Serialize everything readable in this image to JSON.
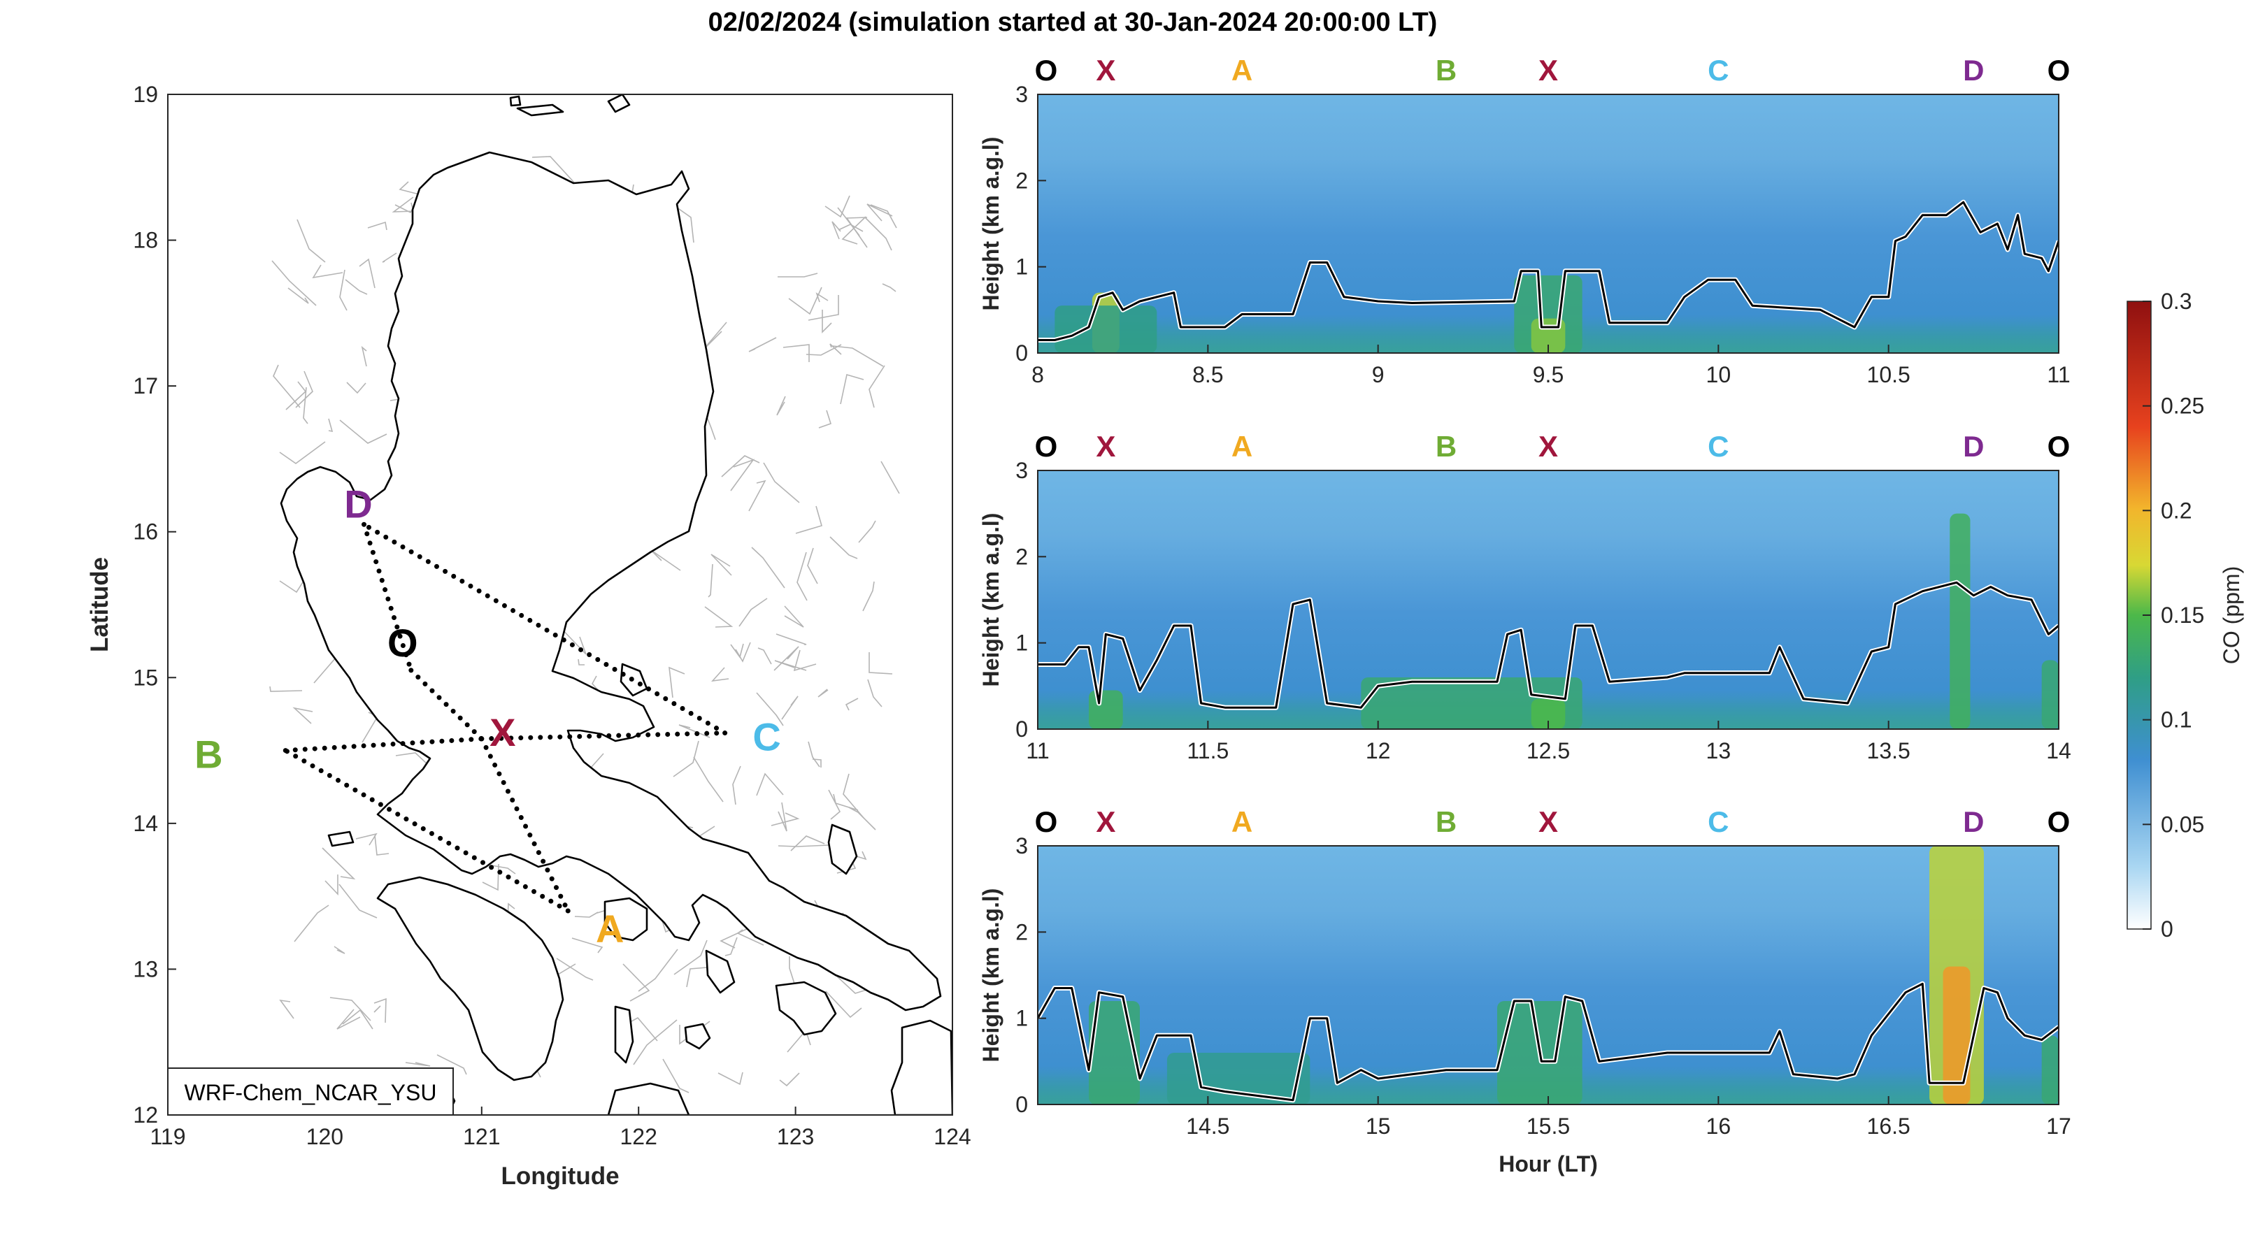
{
  "title": "02/02/2024 (simulation started at 30-Jan-2024 20:00:00 LT)",
  "colors": {
    "O": "#000000",
    "X": "#a0163c",
    "A": "#f0a920",
    "B": "#6fac34",
    "C": "#4cbbe8",
    "D": "#7e2a90",
    "route": "#000000",
    "coast": "#000000",
    "admin": "#b4b4b4"
  },
  "map": {
    "xlabel": "Longitude",
    "ylabel": "Latitude",
    "xticks": [
      "119",
      "120",
      "121",
      "122",
      "123",
      "124"
    ],
    "yticks": [
      "12",
      "13",
      "14",
      "15",
      "16",
      "17",
      "18",
      "19"
    ],
    "xlim": [
      119,
      124
    ],
    "ylim": [
      12,
      19
    ],
    "model_label": "WRF-Chem_NCAR_YSU",
    "points": [
      {
        "id": "D",
        "lon": 120.25,
        "lat": 16.05
      },
      {
        "id": "O",
        "lon": 120.55,
        "lat": 15.05
      },
      {
        "id": "X",
        "lon": 121.0,
        "lat": 14.58
      },
      {
        "id": "C",
        "lon": 122.55,
        "lat": 14.62
      },
      {
        "id": "B",
        "lon": 119.75,
        "lat": 14.5
      },
      {
        "id": "A",
        "lon": 121.55,
        "lat": 13.4
      }
    ],
    "routes": [
      [
        "D",
        "O"
      ],
      [
        "O",
        "X"
      ],
      [
        "X",
        "A"
      ],
      [
        "A",
        "B"
      ],
      [
        "B",
        "X"
      ],
      [
        "X",
        "C"
      ],
      [
        "C",
        "D"
      ]
    ]
  },
  "chart_data": [
    {
      "type": "heatmap",
      "xlim": [
        8,
        11
      ],
      "ylim": [
        0,
        3
      ],
      "xticks": [
        "8",
        "8.5",
        "9",
        "9.5",
        "10",
        "10.5",
        "11"
      ],
      "yticks": [
        "0",
        "1",
        "2",
        "3"
      ],
      "ylabel": "Height (km a.g.l)",
      "xlabel": "",
      "station_labels": [
        {
          "id": "O",
          "x": 8.0
        },
        {
          "id": "X",
          "x": 8.2
        },
        {
          "id": "A",
          "x": 8.6
        },
        {
          "id": "B",
          "x": 9.2
        },
        {
          "id": "X",
          "x": 9.5
        },
        {
          "id": "C",
          "x": 10.0
        },
        {
          "id": "D",
          "x": 10.75
        },
        {
          "id": "O",
          "x": 11.0
        }
      ],
      "pblh": [
        [
          8.0,
          0.15
        ],
        [
          8.05,
          0.15
        ],
        [
          8.1,
          0.2
        ],
        [
          8.15,
          0.3
        ],
        [
          8.18,
          0.65
        ],
        [
          8.22,
          0.7
        ],
        [
          8.25,
          0.5
        ],
        [
          8.3,
          0.6
        ],
        [
          8.4,
          0.7
        ],
        [
          8.42,
          0.3
        ],
        [
          8.55,
          0.3
        ],
        [
          8.6,
          0.45
        ],
        [
          8.75,
          0.45
        ],
        [
          8.8,
          1.05
        ],
        [
          8.85,
          1.05
        ],
        [
          8.9,
          0.65
        ],
        [
          9.0,
          0.6
        ],
        [
          9.1,
          0.58
        ],
        [
          9.4,
          0.6
        ],
        [
          9.42,
          0.95
        ],
        [
          9.47,
          0.95
        ],
        [
          9.48,
          0.3
        ],
        [
          9.53,
          0.3
        ],
        [
          9.55,
          0.95
        ],
        [
          9.65,
          0.95
        ],
        [
          9.68,
          0.35
        ],
        [
          9.85,
          0.35
        ],
        [
          9.9,
          0.65
        ],
        [
          9.97,
          0.85
        ],
        [
          10.05,
          0.85
        ],
        [
          10.1,
          0.55
        ],
        [
          10.3,
          0.5
        ],
        [
          10.4,
          0.3
        ],
        [
          10.45,
          0.65
        ],
        [
          10.5,
          0.65
        ],
        [
          10.52,
          1.3
        ],
        [
          10.55,
          1.35
        ],
        [
          10.6,
          1.6
        ],
        [
          10.67,
          1.6
        ],
        [
          10.72,
          1.75
        ],
        [
          10.77,
          1.4
        ],
        [
          10.82,
          1.5
        ],
        [
          10.85,
          1.2
        ],
        [
          10.88,
          1.6
        ],
        [
          10.9,
          1.15
        ],
        [
          10.95,
          1.1
        ],
        [
          10.97,
          0.95
        ],
        [
          11.0,
          1.3
        ]
      ],
      "highlights": [
        {
          "x0": 8.16,
          "x1": 8.24,
          "y1": 0.7,
          "level": 0.17
        },
        {
          "x0": 8.05,
          "x1": 8.35,
          "y1": 0.55,
          "level": 0.12
        },
        {
          "x0": 9.4,
          "x1": 9.6,
          "y1": 0.9,
          "level": 0.13
        },
        {
          "x0": 9.45,
          "x1": 9.55,
          "y1": 0.4,
          "level": 0.16
        }
      ]
    },
    {
      "type": "heatmap",
      "xlim": [
        11,
        14
      ],
      "ylim": [
        0,
        3
      ],
      "xticks": [
        "11",
        "11.5",
        "12",
        "12.5",
        "13",
        "13.5",
        "14"
      ],
      "yticks": [
        "0",
        "1",
        "2",
        "3"
      ],
      "ylabel": "Height (km a.g.l)",
      "xlabel": "",
      "station_labels": [
        {
          "id": "O",
          "x": 11.0
        },
        {
          "id": "X",
          "x": 11.2
        },
        {
          "id": "A",
          "x": 11.6
        },
        {
          "id": "B",
          "x": 12.2
        },
        {
          "id": "X",
          "x": 12.5
        },
        {
          "id": "C",
          "x": 13.0
        },
        {
          "id": "D",
          "x": 13.75
        },
        {
          "id": "O",
          "x": 14.0
        }
      ],
      "pblh": [
        [
          11.0,
          0.75
        ],
        [
          11.08,
          0.75
        ],
        [
          11.12,
          0.95
        ],
        [
          11.15,
          0.95
        ],
        [
          11.18,
          0.3
        ],
        [
          11.2,
          1.1
        ],
        [
          11.25,
          1.05
        ],
        [
          11.3,
          0.45
        ],
        [
          11.35,
          0.8
        ],
        [
          11.4,
          1.2
        ],
        [
          11.45,
          1.2
        ],
        [
          11.48,
          0.3
        ],
        [
          11.55,
          0.25
        ],
        [
          11.6,
          0.25
        ],
        [
          11.7,
          0.25
        ],
        [
          11.75,
          1.45
        ],
        [
          11.8,
          1.5
        ],
        [
          11.85,
          0.3
        ],
        [
          11.95,
          0.25
        ],
        [
          12.0,
          0.5
        ],
        [
          12.1,
          0.55
        ],
        [
          12.35,
          0.55
        ],
        [
          12.38,
          1.1
        ],
        [
          12.42,
          1.15
        ],
        [
          12.45,
          0.4
        ],
        [
          12.55,
          0.35
        ],
        [
          12.58,
          1.2
        ],
        [
          12.63,
          1.2
        ],
        [
          12.68,
          0.55
        ],
        [
          12.85,
          0.6
        ],
        [
          12.9,
          0.65
        ],
        [
          13.15,
          0.65
        ],
        [
          13.18,
          0.95
        ],
        [
          13.25,
          0.35
        ],
        [
          13.38,
          0.3
        ],
        [
          13.45,
          0.9
        ],
        [
          13.5,
          0.95
        ],
        [
          13.52,
          1.45
        ],
        [
          13.6,
          1.6
        ],
        [
          13.7,
          1.7
        ],
        [
          13.75,
          1.55
        ],
        [
          13.8,
          1.65
        ],
        [
          13.85,
          1.55
        ],
        [
          13.92,
          1.5
        ],
        [
          13.97,
          1.1
        ],
        [
          14.0,
          1.2
        ]
      ],
      "highlights": [
        {
          "x0": 11.15,
          "x1": 11.25,
          "y1": 0.45,
          "level": 0.14
        },
        {
          "x0": 11.95,
          "x1": 12.6,
          "y1": 0.6,
          "level": 0.13
        },
        {
          "x0": 12.45,
          "x1": 12.55,
          "y1": 0.35,
          "level": 0.15
        },
        {
          "x0": 13.68,
          "x1": 13.74,
          "y1": 2.5,
          "level": 0.14
        },
        {
          "x0": 13.95,
          "x1": 14.0,
          "y1": 0.8,
          "level": 0.13
        }
      ]
    },
    {
      "type": "heatmap",
      "xlim": [
        14,
        17
      ],
      "ylim": [
        0,
        3
      ],
      "xticks": [
        "14.5",
        "15",
        "15.5",
        "16",
        "16.5",
        "17"
      ],
      "yticks": [
        "0",
        "1",
        "2",
        "3"
      ],
      "ylabel": "Height (km a.g.l)",
      "xlabel": "Hour (LT)",
      "station_labels": [
        {
          "id": "O",
          "x": 14.0
        },
        {
          "id": "X",
          "x": 14.2
        },
        {
          "id": "A",
          "x": 14.6
        },
        {
          "id": "B",
          "x": 15.2
        },
        {
          "id": "X",
          "x": 15.5
        },
        {
          "id": "C",
          "x": 16.0
        },
        {
          "id": "D",
          "x": 16.75
        },
        {
          "id": "O",
          "x": 17.0
        }
      ],
      "pblh": [
        [
          14.0,
          1.0
        ],
        [
          14.05,
          1.35
        ],
        [
          14.1,
          1.35
        ],
        [
          14.15,
          0.4
        ],
        [
          14.18,
          1.3
        ],
        [
          14.25,
          1.25
        ],
        [
          14.3,
          0.3
        ],
        [
          14.35,
          0.8
        ],
        [
          14.45,
          0.8
        ],
        [
          14.48,
          0.2
        ],
        [
          14.55,
          0.15
        ],
        [
          14.65,
          0.1
        ],
        [
          14.75,
          0.05
        ],
        [
          14.8,
          1.0
        ],
        [
          14.85,
          1.0
        ],
        [
          14.88,
          0.25
        ],
        [
          14.95,
          0.4
        ],
        [
          15.0,
          0.3
        ],
        [
          15.1,
          0.35
        ],
        [
          15.2,
          0.4
        ],
        [
          15.35,
          0.4
        ],
        [
          15.4,
          1.2
        ],
        [
          15.45,
          1.2
        ],
        [
          15.48,
          0.5
        ],
        [
          15.52,
          0.5
        ],
        [
          15.55,
          1.25
        ],
        [
          15.6,
          1.2
        ],
        [
          15.65,
          0.5
        ],
        [
          15.75,
          0.55
        ],
        [
          15.85,
          0.6
        ],
        [
          16.15,
          0.6
        ],
        [
          16.18,
          0.85
        ],
        [
          16.22,
          0.35
        ],
        [
          16.35,
          0.3
        ],
        [
          16.4,
          0.35
        ],
        [
          16.45,
          0.8
        ],
        [
          16.55,
          1.3
        ],
        [
          16.6,
          1.4
        ],
        [
          16.62,
          0.25
        ],
        [
          16.72,
          0.25
        ],
        [
          16.78,
          1.35
        ],
        [
          16.82,
          1.3
        ],
        [
          16.85,
          1.0
        ],
        [
          16.9,
          0.8
        ],
        [
          16.95,
          0.75
        ],
        [
          17.0,
          0.9
        ]
      ],
      "highlights": [
        {
          "x0": 14.15,
          "x1": 14.3,
          "y1": 1.2,
          "level": 0.13
        },
        {
          "x0": 14.38,
          "x1": 14.8,
          "y1": 0.6,
          "level": 0.115
        },
        {
          "x0": 15.35,
          "x1": 15.6,
          "y1": 1.2,
          "level": 0.13
        },
        {
          "x0": 16.62,
          "x1": 16.78,
          "y1": 3.0,
          "level": 0.17
        },
        {
          "x0": 16.66,
          "x1": 16.74,
          "y1": 1.6,
          "level": 0.21
        },
        {
          "x0": 16.95,
          "x1": 17.0,
          "y1": 0.8,
          "level": 0.13
        }
      ]
    }
  ],
  "colorbar": {
    "label": "CO (ppm)",
    "ticks": [
      "0",
      "0.05",
      "0.1",
      "0.15",
      "0.2",
      "0.25",
      "0.3"
    ],
    "range": [
      0,
      0.3
    ]
  }
}
